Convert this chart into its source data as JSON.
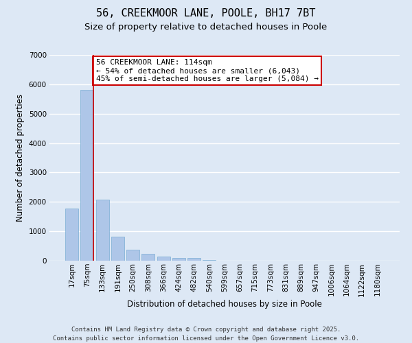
{
  "title": "56, CREEKMOOR LANE, POOLE, BH17 7BT",
  "subtitle": "Size of property relative to detached houses in Poole",
  "xlabel": "Distribution of detached houses by size in Poole",
  "ylabel": "Number of detached properties",
  "categories": [
    "17sqm",
    "75sqm",
    "133sqm",
    "191sqm",
    "250sqm",
    "308sqm",
    "366sqm",
    "424sqm",
    "482sqm",
    "540sqm",
    "599sqm",
    "657sqm",
    "715sqm",
    "773sqm",
    "831sqm",
    "889sqm",
    "947sqm",
    "1006sqm",
    "1064sqm",
    "1122sqm",
    "1180sqm"
  ],
  "values": [
    1780,
    5820,
    2080,
    820,
    370,
    230,
    130,
    90,
    90,
    30,
    10,
    0,
    0,
    0,
    0,
    0,
    0,
    0,
    0,
    0,
    0
  ],
  "bar_color": "#aec6e8",
  "bar_edge_color": "#7aadd4",
  "vline_color": "#cc0000",
  "vline_x_index": 1,
  "annotation_text": "56 CREEKMOOR LANE: 114sqm\n← 54% of detached houses are smaller (6,043)\n45% of semi-detached houses are larger (5,084) →",
  "annotation_box_color": "#cc0000",
  "ylim": [
    0,
    7000
  ],
  "yticks": [
    0,
    1000,
    2000,
    3000,
    4000,
    5000,
    6000,
    7000
  ],
  "background_color": "#dde8f5",
  "grid_color": "#ffffff",
  "footer": "Contains HM Land Registry data © Crown copyright and database right 2025.\nContains public sector information licensed under the Open Government Licence v3.0.",
  "title_fontsize": 11,
  "subtitle_fontsize": 9.5,
  "axis_label_fontsize": 8.5,
  "tick_fontsize": 7.5,
  "annotation_fontsize": 8,
  "footer_fontsize": 6.5
}
